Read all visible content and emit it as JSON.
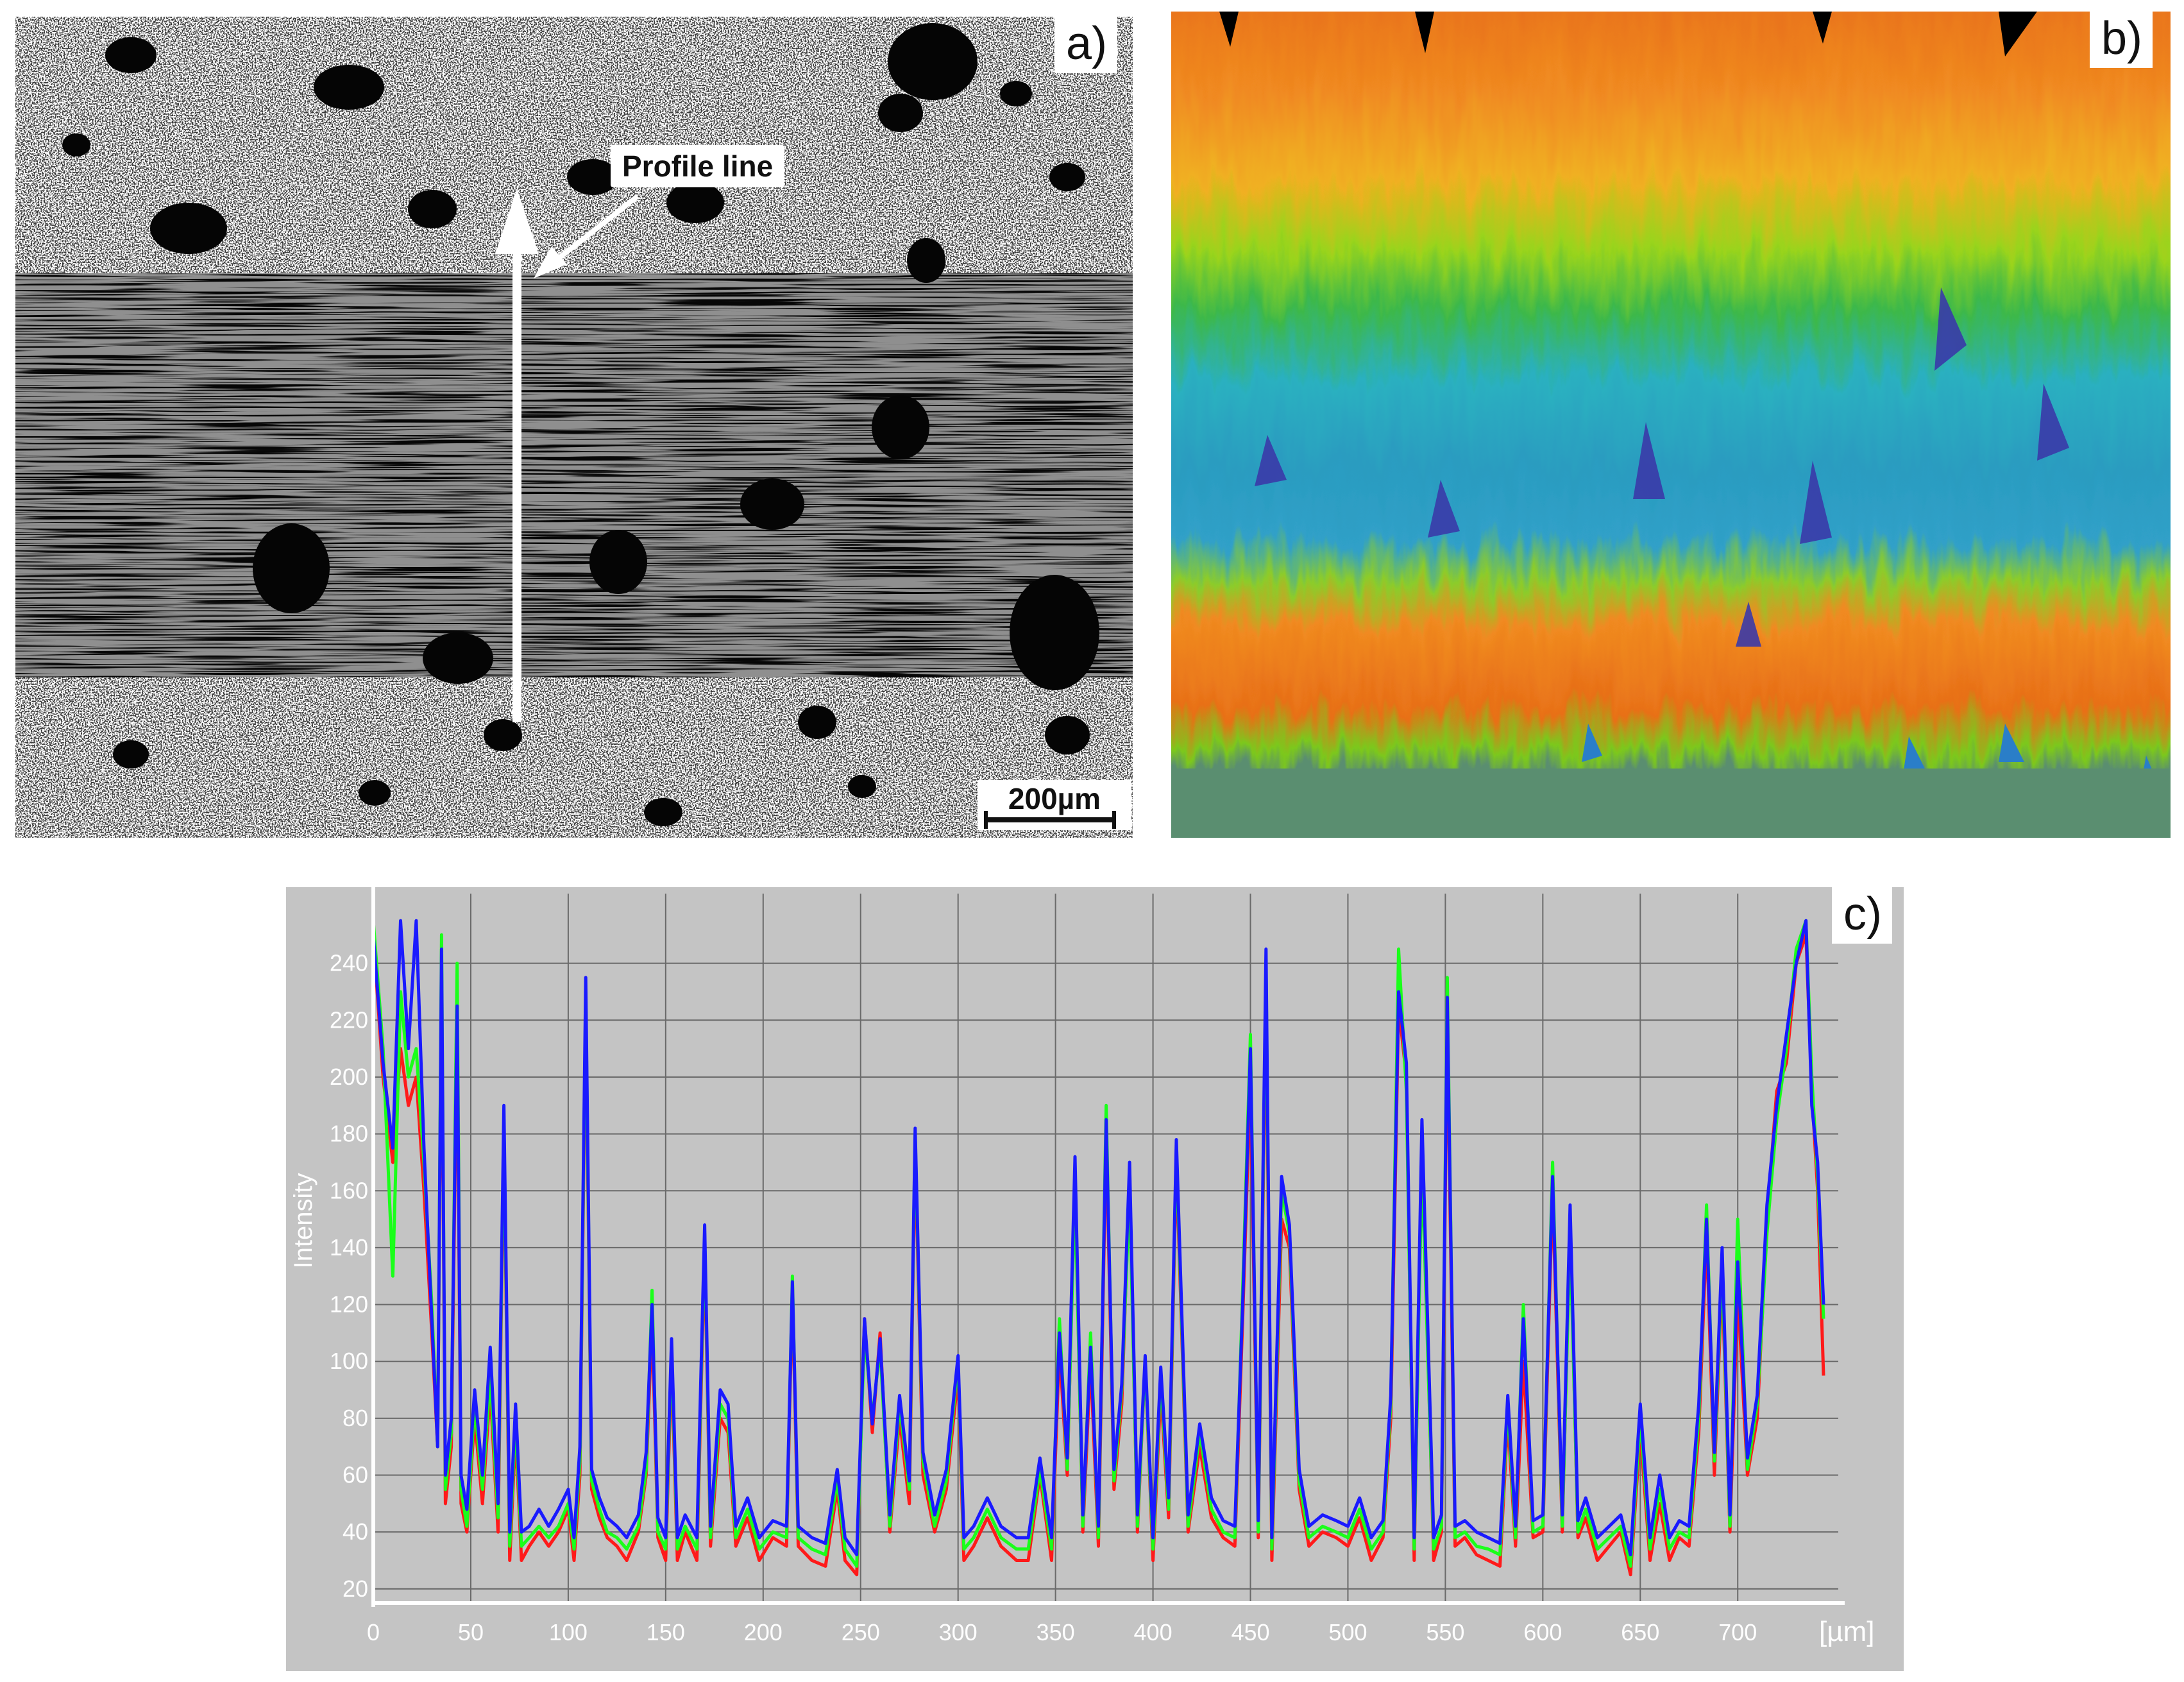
{
  "figure": {
    "panels": [
      {
        "id": "a",
        "label": "a)"
      },
      {
        "id": "b",
        "label": "b)"
      },
      {
        "id": "c",
        "label": "c)"
      }
    ]
  },
  "micrograph": {
    "annotation": "Profile line",
    "scale_bar": "200µm"
  },
  "surface_map": {
    "colors": {
      "high": "#e8701a",
      "mid": "#7cc81c",
      "low_cyan": "#2ab0c0",
      "deep": "#3a3aa8",
      "base": "#5a8e70"
    }
  },
  "chart_data": {
    "type": "line",
    "title": "",
    "xlabel": "",
    "x_unit_label": "[µm]",
    "ylabel": "Intensity",
    "xlim": [
      0,
      745
    ],
    "ylim": [
      15,
      260
    ],
    "x_ticks": [
      0,
      50,
      100,
      150,
      200,
      250,
      300,
      350,
      400,
      450,
      500,
      550,
      600,
      650,
      700
    ],
    "y_ticks": [
      20,
      40,
      60,
      80,
      100,
      120,
      140,
      160,
      180,
      200,
      220,
      240
    ],
    "grid": true,
    "x": [
      0,
      5,
      10,
      14,
      18,
      22,
      26,
      30,
      33,
      35,
      37,
      40,
      43,
      45,
      48,
      52,
      56,
      60,
      64,
      67,
      70,
      73,
      76,
      80,
      85,
      90,
      95,
      100,
      103,
      106,
      109,
      112,
      116,
      120,
      125,
      130,
      136,
      140,
      143,
      146,
      150,
      153,
      156,
      160,
      166,
      170,
      173,
      178,
      182,
      186,
      192,
      198,
      205,
      212,
      215,
      218,
      225,
      232,
      238,
      242,
      248,
      252,
      256,
      260,
      265,
      270,
      275,
      278,
      282,
      288,
      294,
      300,
      303,
      308,
      315,
      322,
      330,
      336,
      342,
      348,
      352,
      356,
      360,
      364,
      368,
      372,
      376,
      380,
      384,
      388,
      392,
      396,
      400,
      404,
      408,
      412,
      418,
      424,
      430,
      436,
      442,
      446,
      450,
      454,
      458,
      461,
      466,
      470,
      475,
      480,
      487,
      494,
      500,
      506,
      512,
      518,
      522,
      526,
      530,
      534,
      538,
      544,
      548,
      551,
      555,
      560,
      566,
      572,
      578,
      582,
      586,
      590,
      595,
      600,
      605,
      610,
      614,
      618,
      622,
      628,
      634,
      640,
      645,
      650,
      655,
      660,
      665,
      670,
      675,
      680,
      684,
      688,
      692,
      696,
      700,
      705,
      710,
      715,
      720,
      725,
      730,
      735,
      738,
      741,
      744
    ],
    "series": [
      {
        "color": "#ff1a1a",
        "values": [
          250,
          200,
          170,
          210,
          190,
          200,
          160,
          110,
          70,
          240,
          50,
          70,
          220,
          50,
          40,
          80,
          50,
          90,
          40,
          180,
          30,
          75,
          30,
          35,
          40,
          35,
          40,
          48,
          30,
          60,
          225,
          55,
          45,
          38,
          35,
          30,
          40,
          60,
          115,
          38,
          30,
          100,
          30,
          40,
          30,
          140,
          35,
          80,
          75,
          35,
          45,
          30,
          38,
          35,
          125,
          35,
          30,
          28,
          55,
          30,
          25,
          115,
          75,
          110,
          40,
          80,
          50,
          175,
          60,
          40,
          55,
          95,
          30,
          35,
          45,
          35,
          30,
          30,
          60,
          30,
          105,
          60,
          165,
          40,
          100,
          35,
          180,
          55,
          85,
          165,
          40,
          100,
          30,
          90,
          45,
          170,
          40,
          70,
          45,
          38,
          35,
          115,
          200,
          38,
          230,
          30,
          150,
          140,
          55,
          35,
          40,
          38,
          35,
          45,
          30,
          38,
          80,
          225,
          200,
          30,
          180,
          30,
          40,
          220,
          35,
          38,
          32,
          30,
          28,
          80,
          35,
          100,
          38,
          40,
          160,
          40,
          150,
          38,
          45,
          30,
          35,
          40,
          25,
          75,
          30,
          50,
          30,
          38,
          35,
          75,
          145,
          60,
          130,
          40,
          125,
          60,
          80,
          150,
          195,
          205,
          240,
          250,
          195,
          160,
          95
        ]
      },
      {
        "color": "#1aff1a",
        "values": [
          255,
          210,
          130,
          230,
          200,
          210,
          170,
          120,
          70,
          250,
          55,
          75,
          240,
          55,
          42,
          85,
          55,
          95,
          45,
          185,
          35,
          80,
          35,
          38,
          42,
          38,
          42,
          50,
          34,
          65,
          230,
          58,
          48,
          40,
          38,
          34,
          42,
          62,
          125,
          40,
          34,
          105,
          34,
          42,
          34,
          145,
          38,
          85,
          80,
          38,
          48,
          34,
          40,
          38,
          130,
          38,
          34,
          32,
          58,
          34,
          28,
          110,
          80,
          105,
          42,
          85,
          55,
          180,
          65,
          42,
          58,
          100,
          34,
          38,
          48,
          38,
          34,
          34,
          62,
          34,
          115,
          62,
          160,
          42,
          110,
          38,
          190,
          58,
          90,
          160,
          42,
          100,
          34,
          95,
          48,
          175,
          42,
          75,
          48,
          40,
          38,
          125,
          215,
          40,
          240,
          34,
          160,
          145,
          58,
          38,
          42,
          40,
          38,
          48,
          34,
          40,
          85,
          245,
          195,
          34,
          170,
          34,
          42,
          235,
          38,
          40,
          35,
          34,
          32,
          85,
          38,
          120,
          40,
          42,
          170,
          42,
          145,
          40,
          48,
          34,
          38,
          42,
          28,
          80,
          34,
          55,
          34,
          40,
          38,
          80,
          155,
          65,
          135,
          42,
          150,
          62,
          85,
          145,
          185,
          210,
          245,
          255,
          200,
          165,
          115
        ]
      },
      {
        "color": "#1a1aff",
        "values": [
          250,
          205,
          175,
          255,
          210,
          255,
          175,
          115,
          70,
          245,
          60,
          80,
          225,
          60,
          48,
          90,
          60,
          105,
          50,
          190,
          40,
          85,
          40,
          42,
          48,
          42,
          48,
          55,
          38,
          70,
          235,
          62,
          52,
          45,
          42,
          38,
          46,
          68,
          120,
          45,
          38,
          108,
          38,
          46,
          38,
          148,
          42,
          90,
          85,
          42,
          52,
          38,
          44,
          42,
          128,
          42,
          38,
          36,
          62,
          38,
          32,
          115,
          78,
          108,
          46,
          88,
          58,
          182,
          68,
          46,
          62,
          102,
          38,
          42,
          52,
          42,
          38,
          38,
          66,
          38,
          110,
          66,
          172,
          46,
          105,
          42,
          185,
          62,
          92,
          170,
          46,
          102,
          38,
          98,
          52,
          178,
          46,
          78,
          52,
          44,
          42,
          120,
          210,
          44,
          245,
          38,
          165,
          148,
          62,
          42,
          46,
          44,
          42,
          52,
          38,
          44,
          88,
          230,
          205,
          38,
          185,
          38,
          46,
          228,
          42,
          44,
          40,
          38,
          36,
          88,
          42,
          115,
          44,
          46,
          165,
          46,
          155,
          44,
          52,
          38,
          42,
          46,
          32,
          85,
          38,
          60,
          38,
          44,
          42,
          85,
          150,
          68,
          140,
          46,
          135,
          66,
          88,
          155,
          190,
          215,
          240,
          255,
          190,
          170,
          120
        ]
      }
    ]
  }
}
